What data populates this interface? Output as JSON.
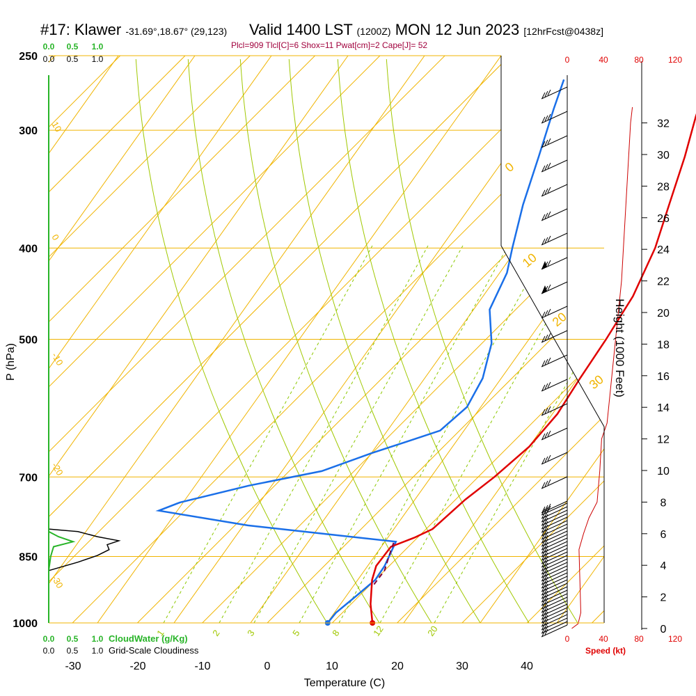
{
  "header": {
    "station": "#17: Klawer",
    "coords": "-31.69°,18.67° (29,123)",
    "valid": "Valid 1400 LST",
    "utc": "(1200Z)",
    "date": "MON 12 Jun 2023",
    "forecast": "[12hrFcst@0438z]"
  },
  "info_line": "Plcl=909 Tlcl[C]=6 Shox=11 Pwat[cm]=2 Cape[J]= 52",
  "chart_data": {
    "type": "line",
    "title": "#17: Klawer",
    "xlabel": "Temperature (C)",
    "ylabel": "P (hPa)",
    "xlim": [
      -35,
      35
    ],
    "ylim": [
      1000,
      250
    ],
    "x_ticks": [
      "-30",
      "-20",
      "-10",
      "0",
      "10",
      "20",
      "30",
      "40"
    ],
    "pressure_ticks": [
      "250",
      "300",
      "400",
      "500",
      "700",
      "850",
      "1000"
    ],
    "height_axis": {
      "label": "Height (1000 Feet)",
      "ticks": [
        "0",
        "2",
        "4",
        "6",
        "8",
        "10",
        "12",
        "14",
        "16",
        "18",
        "20",
        "22",
        "24",
        "26",
        "28",
        "30",
        "32"
      ]
    },
    "speed_axis": {
      "label": "Speed (kt)",
      "ticks": [
        "0",
        "40",
        "80",
        "120"
      ]
    },
    "cloud_axis": {
      "cloudwater_label": "CloudWater (g/Kg)",
      "cloudiness_label": "Grid-Scale Cloudiness",
      "ticks": [
        "0.0",
        "0.5",
        "1.0"
      ]
    },
    "isotherm_labels": [
      "0",
      "10",
      "20",
      "30"
    ],
    "dry_adiabat_labels": [
      "10",
      "0",
      "-10",
      "-20",
      "-30"
    ],
    "mixing_ratio_labels": [
      "1",
      "2",
      "3",
      "5",
      "8",
      "12",
      "20"
    ],
    "series": [
      {
        "name": "Temperature",
        "color": "#e00000",
        "points": [
          [
            16.2,
            1000
          ],
          [
            13,
            955
          ],
          [
            9.5,
            900
          ],
          [
            8,
            870
          ],
          [
            7.3,
            830
          ],
          [
            9.5,
            812
          ],
          [
            11,
            795
          ],
          [
            11.5,
            740
          ],
          [
            12.5,
            700
          ],
          [
            13.2,
            650
          ],
          [
            12.5,
            600
          ],
          [
            10.5,
            550
          ],
          [
            8.5,
            500
          ],
          [
            6,
            450
          ],
          [
            2,
            400
          ],
          [
            -2.5,
            360
          ],
          [
            -7.5,
            320
          ],
          [
            -12,
            290
          ],
          [
            -15,
            270
          ]
        ]
      },
      {
        "name": "Dewpoint",
        "color": "#1a6fe8",
        "points": [
          [
            9.3,
            1000
          ],
          [
            9,
            975
          ],
          [
            9.5,
            940
          ],
          [
            10,
            900
          ],
          [
            9.3,
            870
          ],
          [
            7.3,
            820
          ],
          [
            -18,
            788
          ],
          [
            -34,
            760
          ],
          [
            -32,
            745
          ],
          [
            -24,
            715
          ],
          [
            -15,
            690
          ],
          [
            -10,
            660
          ],
          [
            -6,
            640
          ],
          [
            -3,
            625
          ],
          [
            -2.5,
            590
          ],
          [
            -4.5,
            550
          ],
          [
            -8.5,
            505
          ],
          [
            -14,
            465
          ],
          [
            -17,
            425
          ],
          [
            -20,
            400
          ],
          [
            -25,
            360
          ],
          [
            -30,
            320
          ],
          [
            -35,
            285
          ],
          [
            -38,
            265
          ]
        ]
      },
      {
        "name": "Parcel",
        "color": "#800040",
        "points": [
          [
            10.5,
            910
          ],
          [
            10,
            880
          ],
          [
            8.5,
            850
          ],
          [
            7,
            820
          ]
        ]
      },
      {
        "name": "Cloud water",
        "color": "#28b428",
        "points": [
          [
            0,
            880
          ],
          [
            0.02,
            850
          ],
          [
            0.05,
            830
          ],
          [
            0.25,
            820
          ],
          [
            0.1,
            810
          ],
          [
            0,
            800
          ]
        ]
      },
      {
        "name": "Cloudiness",
        "color": "#000000",
        "points": [
          [
            0,
            880
          ],
          [
            0.3,
            862
          ],
          [
            0.5,
            848
          ],
          [
            0.62,
            836
          ],
          [
            0.6,
            826
          ],
          [
            0.72,
            818
          ],
          [
            0.5,
            810
          ],
          [
            0.3,
            800
          ],
          [
            0,
            795
          ]
        ]
      },
      {
        "name": "Wind speed",
        "color": "#cc0000",
        "points": [
          [
            5,
            0
          ],
          [
            12,
            0.3
          ],
          [
            15,
            1
          ],
          [
            14,
            3
          ],
          [
            13,
            5
          ],
          [
            18,
            6
          ],
          [
            24,
            7
          ],
          [
            33,
            8
          ],
          [
            36,
            10
          ],
          [
            38,
            12
          ],
          [
            44,
            13
          ],
          [
            60,
            22
          ],
          [
            66,
            28
          ],
          [
            70,
            32
          ],
          [
            72,
            33
          ]
        ]
      }
    ]
  },
  "symbol_names": {
    "surface_temp_dot": "temp-dot",
    "surface_dew_dot": "dew-dot"
  },
  "colors": {
    "isotherm": "#f0b400",
    "mixing_ratio": "#8cc800",
    "axis_cloud": "#28b428",
    "speed": "#e00000"
  }
}
